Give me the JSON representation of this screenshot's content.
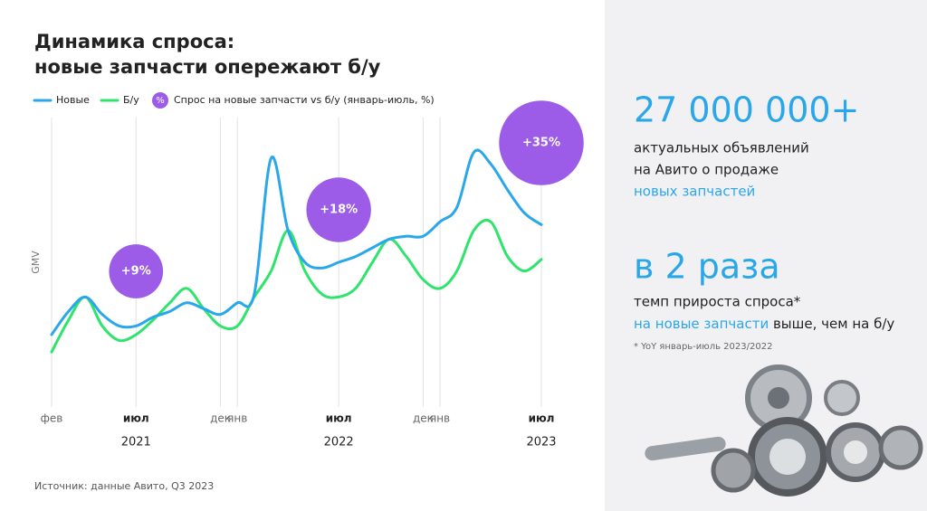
{
  "chart_data": {
    "type": "line",
    "title_lines": [
      "Динамика спроса:",
      "новые запчасти опережают б/у"
    ],
    "y_label": "GMV",
    "x": [
      0,
      1,
      2,
      3,
      4,
      5,
      6,
      7,
      8,
      9,
      10,
      11,
      12,
      13,
      14,
      15,
      16,
      17,
      18,
      19,
      20,
      21,
      22,
      23,
      24,
      25,
      26,
      27,
      28,
      29
    ],
    "xlim": [
      0,
      29
    ],
    "ylim": [
      0,
      100
    ],
    "xticks": [
      {
        "value": 0,
        "label": "фев",
        "bold": false
      },
      {
        "value": 5,
        "label": "июл",
        "bold": true
      },
      {
        "value": 10,
        "label": "дек",
        "bold": false
      },
      {
        "value": 11,
        "label": "янв",
        "bold": false
      },
      {
        "value": 17,
        "label": "июл",
        "bold": true
      },
      {
        "value": 22,
        "label": "дек",
        "bold": false
      },
      {
        "value": 23,
        "label": "янв",
        "bold": false
      },
      {
        "value": 29,
        "label": "июл",
        "bold": true
      }
    ],
    "year_labels": [
      "2021",
      "2022",
      "2023"
    ],
    "grid": true,
    "series": [
      {
        "name": "Новые",
        "color": "#2aa7ea",
        "values": [
          25,
          33,
          38,
          32,
          28,
          28,
          31,
          33,
          36,
          34,
          32,
          36,
          39,
          86,
          61,
          50,
          48,
          50,
          52,
          55,
          58,
          59,
          59,
          64,
          69,
          88,
          84,
          75,
          67,
          63
        ]
      },
      {
        "name": "Б/у",
        "color": "#2ee46c",
        "values": [
          19,
          30,
          38,
          28,
          23,
          25,
          30,
          36,
          41,
          34,
          28,
          28,
          38,
          47,
          61,
          47,
          39,
          38,
          41,
          50,
          58,
          52,
          44,
          41,
          47,
          61,
          64,
          52,
          47,
          51
        ]
      }
    ],
    "bubbles": {
      "name": "Спрос на новые запчасти vs б/у (январь-июль, %)",
      "legend_symbol": "%",
      "color": "#9c5ce8",
      "x": [
        5,
        17,
        29
      ],
      "values": [
        9,
        18,
        35
      ],
      "value_labels": [
        "+9%",
        "+18%",
        "+35%"
      ]
    },
    "source": "Источник: данные Авито, Q3 2023"
  },
  "side_panel": {
    "stat1": {
      "value_text": "27 000 000+",
      "lines": [
        "актуальных объявлений",
        "на Авито о продаже"
      ],
      "highlight": "новых запчастей"
    },
    "stat2": {
      "value_text": "в 2 раза",
      "line1": "темп прироста спроса*",
      "highlight": "на новые запчасти",
      "rest": " выше, чем на б/у",
      "footnote": "* YoY январь-июль 2023/2022"
    }
  }
}
